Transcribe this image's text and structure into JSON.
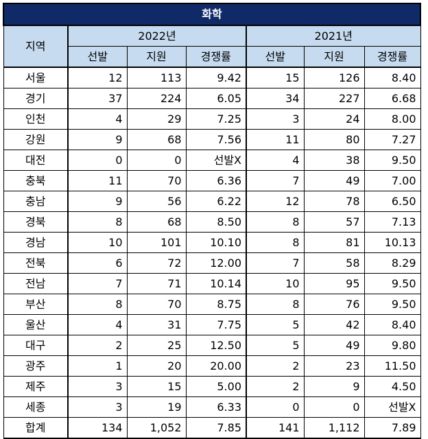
{
  "title": "화학",
  "header": {
    "region": "지역",
    "year1": "2022년",
    "year2": "2021년",
    "cols": [
      "선발",
      "지원",
      "경쟁률",
      "선발",
      "지원",
      "경쟁률"
    ]
  },
  "rows": [
    [
      "서울",
      "12",
      "113",
      "9.42",
      "15",
      "126",
      "8.40"
    ],
    [
      "경기",
      "37",
      "224",
      "6.05",
      "34",
      "227",
      "6.68"
    ],
    [
      "인천",
      "4",
      "29",
      "7.25",
      "3",
      "24",
      "8.00"
    ],
    [
      "강원",
      "9",
      "68",
      "7.56",
      "11",
      "80",
      "7.27"
    ],
    [
      "대전",
      "0",
      "0",
      "선발X",
      "4",
      "38",
      "9.50"
    ],
    [
      "충북",
      "11",
      "70",
      "6.36",
      "7",
      "49",
      "7.00"
    ],
    [
      "충남",
      "9",
      "56",
      "6.22",
      "12",
      "78",
      "6.50"
    ],
    [
      "경북",
      "8",
      "68",
      "8.50",
      "8",
      "57",
      "7.13"
    ],
    [
      "경남",
      "10",
      "101",
      "10.10",
      "8",
      "81",
      "10.13"
    ],
    [
      "전북",
      "6",
      "72",
      "12.00",
      "7",
      "58",
      "8.29"
    ],
    [
      "전남",
      "7",
      "71",
      "10.14",
      "10",
      "95",
      "9.50"
    ],
    [
      "부산",
      "8",
      "70",
      "8.75",
      "8",
      "76",
      "9.50"
    ],
    [
      "울산",
      "4",
      "31",
      "7.75",
      "5",
      "42",
      "8.40"
    ],
    [
      "대구",
      "2",
      "25",
      "12.50",
      "5",
      "49",
      "9.80"
    ],
    [
      "광주",
      "1",
      "20",
      "20.00",
      "2",
      "23",
      "11.50"
    ],
    [
      "제주",
      "3",
      "15",
      "5.00",
      "2",
      "9",
      "4.50"
    ],
    [
      "세종",
      "3",
      "19",
      "6.33",
      "0",
      "0",
      "선발X"
    ],
    [
      "합계",
      "134",
      "1,052",
      "7.85",
      "141",
      "1,112",
      "7.89"
    ]
  ]
}
